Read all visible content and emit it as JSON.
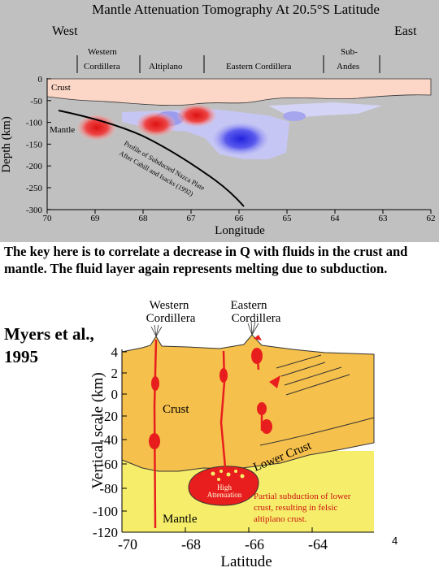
{
  "slide": {
    "caption": "The key here is to correlate a decrease in Q with fluids in the crust and mantle.  The fluid layer again represents melting due to subduction.",
    "authors_line1": "Myers et al.,",
    "authors_line2": "1995",
    "page_number": "4"
  },
  "tomography": {
    "title": "Mantle Attenuation Tomography At 20.5°S Latitude",
    "west_label": "West",
    "east_label": "East",
    "regions": [
      {
        "line1": "Western",
        "line2": "Cordillera"
      },
      {
        "line1": "",
        "line2": "Altiplano"
      },
      {
        "line1": "",
        "line2": "Eastern Cordillera"
      },
      {
        "line1": "Sub-",
        "line2": "Andes"
      }
    ],
    "crust_label": "Crust",
    "mantle_label": "Mantle",
    "slab_label_line1": "Profile of Subducted Nazca Plate",
    "slab_label_line2": "After Cahill and Isacks (1992)",
    "y_axis_label": "Depth (km)",
    "x_axis_label": "Longitude",
    "y_ticks": [
      "0",
      "-50",
      "-100",
      "-150",
      "-200",
      "-250",
      "-300"
    ],
    "x_ticks": [
      "70",
      "69",
      "68",
      "67",
      "66",
      "65",
      "64",
      "63",
      "62"
    ],
    "colors": {
      "background": "#c0c0c0",
      "crust": "#fcd6c6",
      "high_attenuation": "#ee2222",
      "low_attenuation": "#3333ee"
    }
  },
  "cross_section": {
    "western_label_line1": "Western",
    "western_label_line2": "Cordillera",
    "eastern_label_line1": "Eastern",
    "eastern_label_line2": "Cordillera",
    "crust_label": "Crust",
    "lower_crust_label": "Lower Crust",
    "mantle_label": "Mantle",
    "high_att_line1": "High",
    "high_att_line2": "Attenuation",
    "partial_line1": "Partial subduction of lower",
    "partial_line2": "crust, resulting in felsic",
    "partial_line3": "altiplano crust.",
    "y_axis_label": "Vertical scale (km)",
    "x_axis_label": "Latitude",
    "y_ticks": [
      "4",
      "2",
      "0",
      "-20",
      "-40",
      "-60",
      "-80",
      "-100",
      "-120"
    ],
    "x_ticks": [
      "-70",
      "-68",
      "-66",
      "-64"
    ],
    "colors": {
      "crust": "#f6c04c",
      "mantle": "#f6ee6a",
      "magma": "#e81e1e"
    }
  }
}
